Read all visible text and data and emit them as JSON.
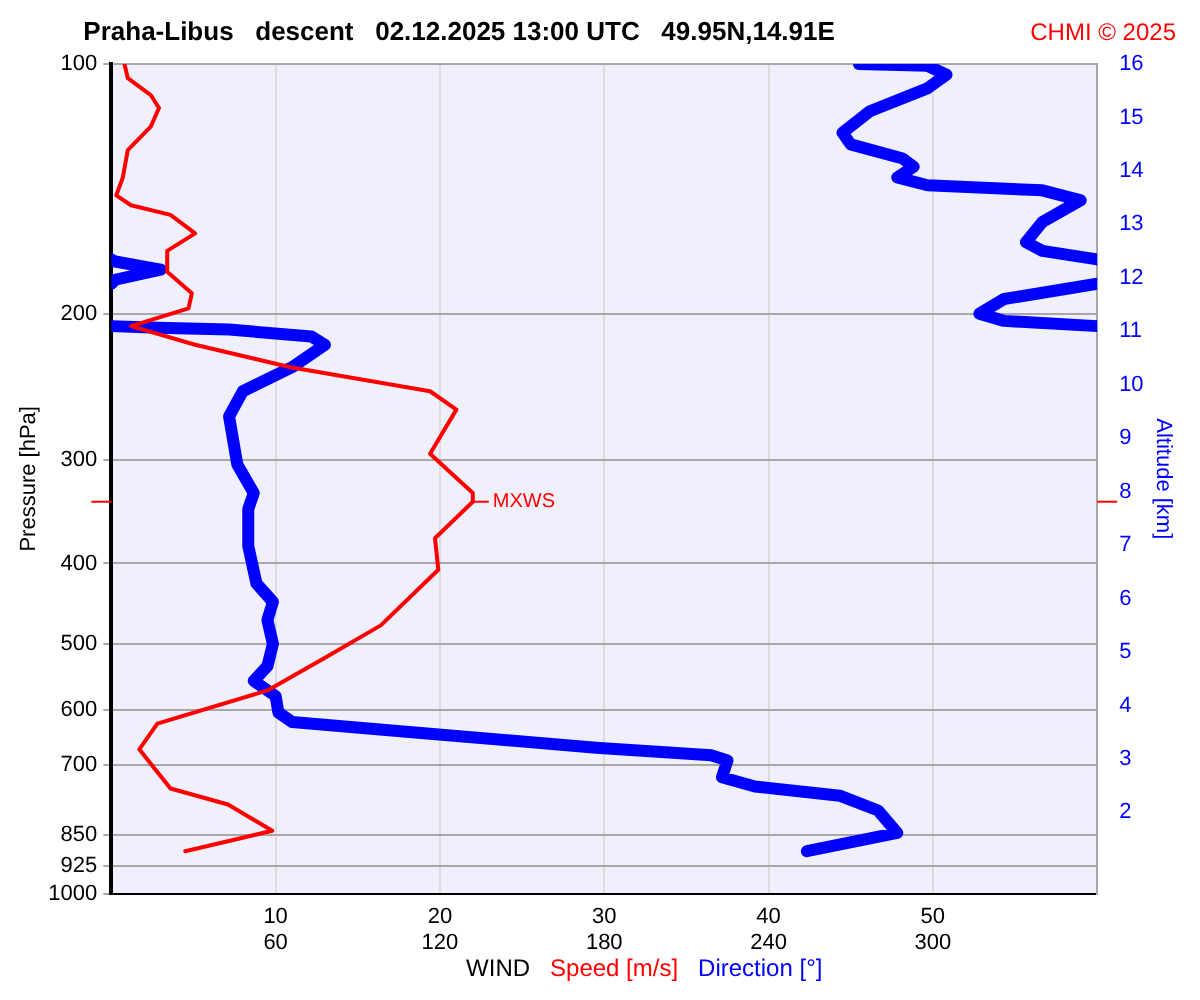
{
  "chart_data": {
    "type": "line",
    "title": "Praha-Libus   descent   02.12.2025 13:00 UTC   49.95N,14.91E",
    "xlabel": "WIND",
    "ylabel": "Pressure [hPa]",
    "y2label": "Altitude [km]",
    "annotations": [
      "CHMI © 2025",
      {
        "text": "MXWS",
        "x": 22,
        "y": 337
      }
    ],
    "log": "y",
    "grid": true,
    "legend": "bottom",
    "marker": "none",
    "line_style": "solid",
    "xlim": [
      0,
      60
    ],
    "xticks": [
      10,
      20,
      30,
      40,
      50
    ],
    "x2lim": [
      0,
      360
    ],
    "x2ticks": [
      60,
      120,
      180,
      240,
      300
    ],
    "ylim": [
      1000,
      100
    ],
    "yticks": [
      100,
      200,
      300,
      400,
      500,
      600,
      700,
      850,
      925,
      1000
    ],
    "y2lim": [
      0.48,
      16
    ],
    "y2ticks": [
      2,
      3,
      4,
      5,
      6,
      7,
      8,
      9,
      10,
      11,
      12,
      13,
      14,
      15,
      16
    ],
    "series": [
      {
        "name": "Speed [m/s]",
        "color": "#ff0000",
        "x": [
          4.5,
          9.8,
          7.1,
          3.6,
          1.7,
          2.8,
          9.5,
          12.9,
          16.4,
          19.9,
          19.7,
          22,
          22,
          19.4,
          21,
          19.4,
          10.9,
          5.1,
          1.2,
          4.7,
          4.9,
          3.4,
          3.4,
          5.1,
          3.6,
          1.2,
          0.3,
          0.7,
          1.0,
          2.4,
          2.9,
          2.4,
          1.0,
          0.8
        ],
        "values": [
          889,
          840,
          781,
          747,
          670,
          624,
          569,
          521,
          475,
          407,
          373,
          337,
          329,
          295,
          261,
          248,
          232,
          218,
          207,
          197,
          189,
          178,
          168,
          160,
          152,
          148,
          144,
          137,
          127,
          119,
          113,
          109,
          104,
          100
        ]
      },
      {
        "name": "Direction [°]",
        "color": "#0000ff",
        "axis": "x2",
        "x": [
          254,
          287,
          280,
          266,
          235,
          223,
          225,
          219,
          177,
          112,
          66,
          61,
          60,
          52,
          57,
          59,
          57,
          59,
          53,
          50,
          50,
          52,
          46,
          43,
          48,
          66,
          78,
          73,
          43,
          17,
          0,
          null,
          360,
          326,
          317,
          326,
          360,
          null,
          0,
          1.4,
          18,
          1.4,
          0,
          null,
          360,
          340,
          334,
          340,
          354,
          340,
          298,
          287,
          293,
          289,
          270,
          267,
          277,
          298,
          305,
          298,
          273
        ],
        "values": [
          889,
          845,
          794,
          762,
          743,
          724,
          691,
          681,
          667,
          640,
          621,
          605,
          578,
          554,
          532,
          500,
          468,
          445,
          423,
          381,
          344,
          329,
          304,
          266,
          248,
          232,
          218,
          213,
          209,
          208,
          207,
          null,
          207,
          204,
          200,
          192,
          184,
          null,
          184,
          182,
          177,
          173,
          172,
          null,
          172,
          168,
          164,
          155,
          146,
          142,
          140,
          137,
          133,
          130,
          125,
          121,
          114,
          107,
          103,
          100.5,
          100
        ]
      }
    ]
  }
}
